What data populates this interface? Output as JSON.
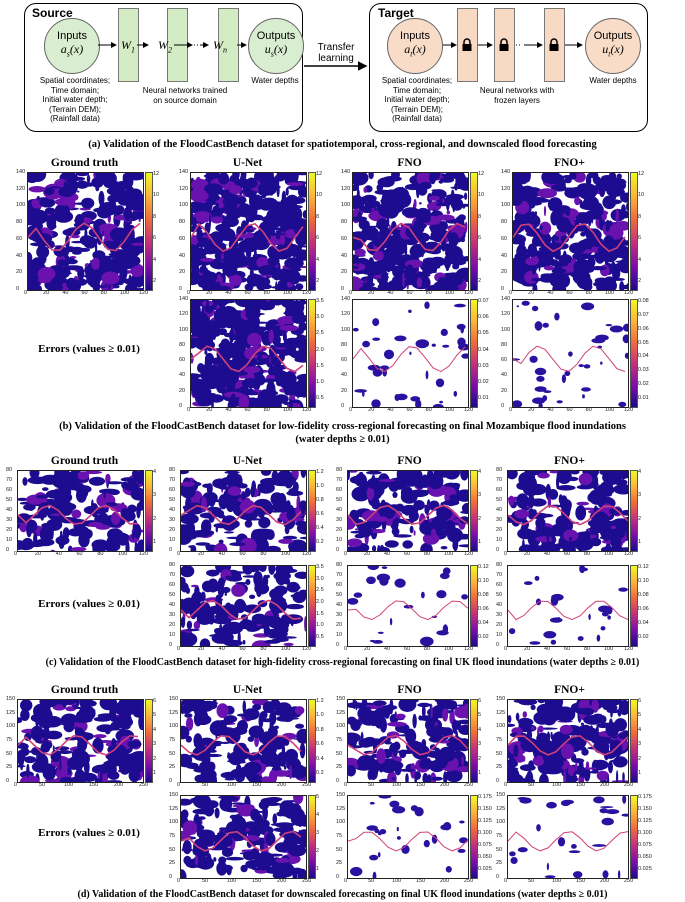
{
  "diagram": {
    "source": {
      "title": "Source",
      "inputs_label": "Inputs",
      "inputs_var": "a",
      "inputs_sub": "s",
      "inputs_arg": "(x)",
      "layers": [
        "W",
        "W",
        "W"
      ],
      "layer_subs": [
        "1",
        "2",
        "n"
      ],
      "outputs_label": "Outputs",
      "outputs_var": "u",
      "outputs_sub": "s",
      "outputs_arg": "(x)",
      "inputs_desc": [
        "Spatial coordinates;",
        "Time domain;",
        "Initial water depth;",
        "(Terrain DEM);",
        "(Rainfall data)"
      ],
      "network_desc": [
        "Neural networks trained",
        "on source domain"
      ],
      "outputs_desc": "Water depths"
    },
    "transfer_label": [
      "Transfer",
      "learning"
    ],
    "target": {
      "title": "Target",
      "inputs_label": "Inputs",
      "inputs_var": "a",
      "inputs_sub": "t",
      "inputs_arg": "(x)",
      "outputs_label": "Outputs",
      "outputs_var": "u",
      "outputs_sub": "t",
      "outputs_arg": "(x)",
      "inputs_desc": [
        "Spatial coordinates;",
        "Time domain;",
        "Initial water depth;",
        "(Terrain DEM);",
        "(Rainfall data)"
      ],
      "network_desc": [
        "Neural networks with",
        "frozen layers"
      ],
      "outputs_desc": "Water depths"
    },
    "colors": {
      "source_layer": "#d4ecc4",
      "target_layer": "#f7d9c4",
      "source_circle": "#d9eed0",
      "target_circle": "#f8dcc8"
    }
  },
  "captions": {
    "a": "(a) Validation of the FloodCastBench dataset for spatiotemporal, cross-regional, and downscaled flood forecasting",
    "b1": "(b) Validation of the FloodCastBench dataset for low-fidelity cross-regional forecasting on final Mozambique flood inundations",
    "b2": "(water depths ≥ 0.01)",
    "c": "(c) Validation of the FloodCastBench dataset for high-fidelity cross-regional forecasting on final UK flood inundations (water depths ≥ 0.01)",
    "d": "(d) Validation of the FloodCastBench dataset for downscaled forecasting on final UK flood inundations (water depths ≥ 0.01)"
  },
  "columns": [
    "Ground truth",
    "U-Net",
    "FNO",
    "FNO+"
  ],
  "error_label": "Errors (values ≥ 0.01)",
  "panels": {
    "b": {
      "pred_ticks": [
        "12",
        "10",
        "8",
        "6",
        "4",
        "2"
      ],
      "unet_err_ticks": [
        "3.5",
        "3.0",
        "2.5",
        "2.0",
        "1.5",
        "1.0",
        "0.5"
      ],
      "fno_err_ticks": [
        "0.07",
        "0.06",
        "0.05",
        "0.04",
        "0.03",
        "0.02",
        "0.01"
      ],
      "fnop_err_ticks": [
        "0.08",
        "0.07",
        "0.06",
        "0.05",
        "0.04",
        "0.03",
        "0.02",
        "0.01"
      ],
      "xticks": [
        "0",
        "20",
        "40",
        "60",
        "80",
        "100",
        "120"
      ],
      "yticks": [
        "140",
        "120",
        "100",
        "80",
        "60",
        "40",
        "20",
        "0"
      ]
    },
    "c": {
      "pred_ticks": [
        "4",
        "3",
        "2",
        "1"
      ],
      "unet_pred_ticks": [
        "1.2",
        "1.0",
        "0.8",
        "0.6",
        "0.4",
        "0.2"
      ],
      "unet_err_ticks": [
        "3.5",
        "3.0",
        "2.5",
        "2.0",
        "1.5",
        "1.0",
        "0.5"
      ],
      "fno_err_ticks": [
        "0.12",
        "0.10",
        "0.08",
        "0.06",
        "0.04",
        "0.02"
      ],
      "fnop_err_ticks": [
        "0.12",
        "0.10",
        "0.08",
        "0.06",
        "0.04",
        "0.02"
      ],
      "xticks": [
        "0",
        "20",
        "40",
        "60",
        "80",
        "100",
        "120"
      ],
      "yticks": [
        "80",
        "70",
        "60",
        "50",
        "40",
        "30",
        "20",
        "10",
        "0"
      ]
    },
    "d": {
      "pred_ticks": [
        "6",
        "5",
        "4",
        "3",
        "2",
        "1"
      ],
      "unet_pred_ticks": [
        "1.2",
        "1.0",
        "0.8",
        "0.6",
        "0.4",
        "0.2"
      ],
      "unet_err_ticks": [
        "5",
        "4",
        "3",
        "2",
        "1"
      ],
      "fno_err_ticks": [
        "0.175",
        "0.150",
        "0.125",
        "0.100",
        "0.075",
        "0.050",
        "0.025"
      ],
      "fnop_err_ticks": [
        "0.175",
        "0.150",
        "0.125",
        "0.100",
        "0.075",
        "0.050",
        "0.025"
      ],
      "xticks": [
        "0",
        "50",
        "100",
        "150",
        "200",
        "250"
      ],
      "yticks": [
        "150",
        "125",
        "100",
        "75",
        "50",
        "25",
        "0"
      ]
    }
  }
}
